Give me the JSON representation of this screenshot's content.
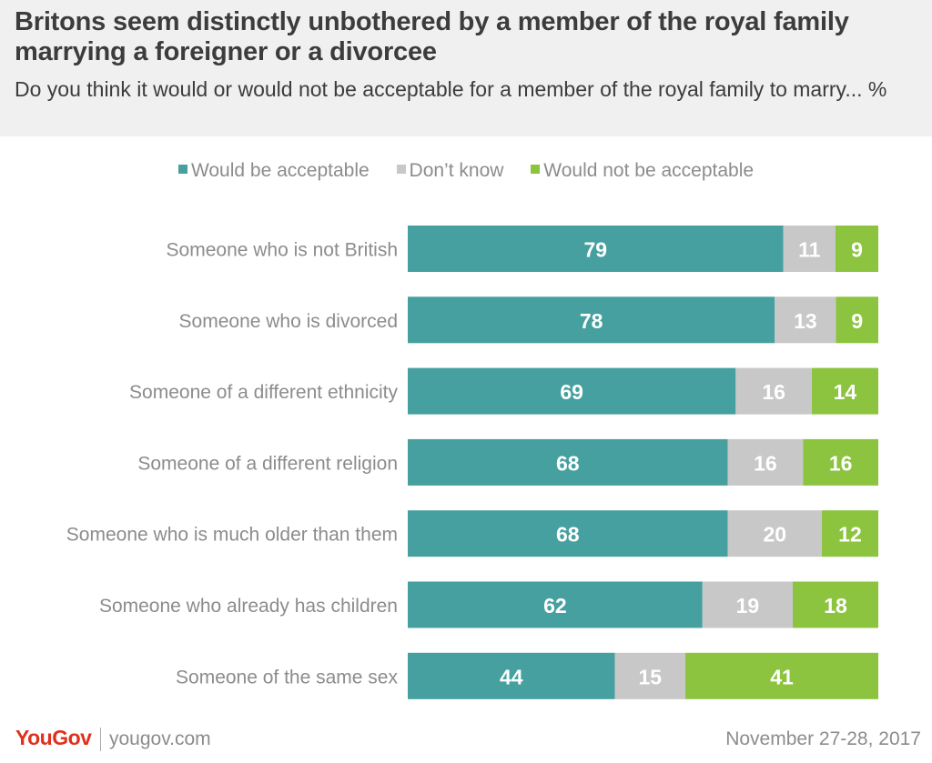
{
  "title": "Britons seem distinctly unbothered by a member of the royal family marrying a foreigner or a divorcee",
  "subtitle": "Do you think it would or would not be acceptable for a member of the royal family to marry... %",
  "legend": {
    "acceptable": "Would be acceptable",
    "dont_know": "Don’t know",
    "not_acceptable": "Would not be acceptable"
  },
  "colors": {
    "acceptable": "#46a09f",
    "dont_know": "#c8c8c8",
    "not_acceptable": "#8cc43f",
    "label_text": "#8c8c8c",
    "header_bg": "#f0f0f0",
    "brand": "#e0301e"
  },
  "footer": {
    "logo": "YouGov",
    "site": "yougov.com",
    "date": "November 27-28, 2017"
  },
  "chart_data": {
    "type": "bar",
    "orientation": "horizontal",
    "stacked": true,
    "categories": [
      "Someone who is not British",
      "Someone who is divorced",
      "Someone of a different ethnicity",
      "Someone of a different religion",
      "Someone who is much older than them",
      "Someone who already has children",
      "Someone of the same sex"
    ],
    "series": [
      {
        "name": "Would be acceptable",
        "values": [
          79,
          78,
          69,
          68,
          68,
          62,
          44
        ]
      },
      {
        "name": "Don’t know",
        "values": [
          11,
          13,
          16,
          16,
          20,
          19,
          15
        ]
      },
      {
        "name": "Would not be acceptable",
        "values": [
          9,
          9,
          14,
          16,
          12,
          18,
          41
        ]
      }
    ],
    "unit": "%",
    "legend_position": "top",
    "grid": false
  }
}
